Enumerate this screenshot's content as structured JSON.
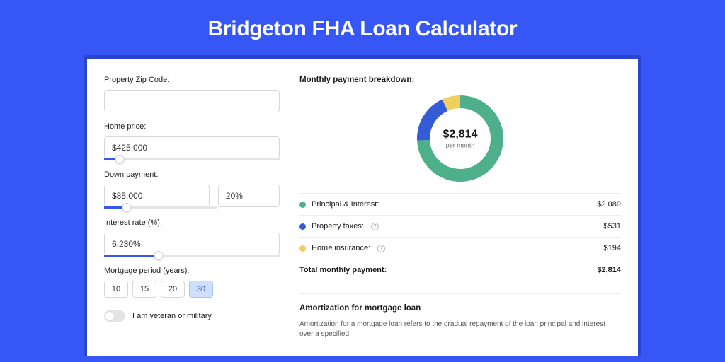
{
  "page": {
    "title": "Bridgeton FHA Loan Calculator",
    "bg_color": "#3656f5",
    "card_frame_color": "#2a44cf",
    "card_bg": "#ffffff"
  },
  "inputs": {
    "zip_label": "Property Zip Code:",
    "zip_value": "",
    "home_price_label": "Home price:",
    "home_price_value": "$425,000",
    "home_price_slider_pct": 9,
    "down_payment_label": "Down payment:",
    "down_payment_amount": "$85,000",
    "down_payment_pct": "20%",
    "down_payment_slider_pct": 20,
    "interest_label": "Interest rate (%):",
    "interest_value": "6.230%",
    "interest_slider_pct": 31,
    "period_label": "Mortgage period (years):",
    "period_options": [
      "10",
      "15",
      "20",
      "30"
    ],
    "period_selected": "30",
    "veteran_label": "I am veteran or military",
    "veteran_on": false
  },
  "breakdown": {
    "title": "Monthly payment breakdown:",
    "donut": {
      "amount": "$2,814",
      "sub": "per month",
      "slices": [
        {
          "label": "Principal & Interest:",
          "color": "#4eb08b",
          "value": "$2,089",
          "pct": 74.2
        },
        {
          "label": "Property taxes:",
          "color": "#335cd6",
          "value": "$531",
          "pct": 18.9,
          "info": true
        },
        {
          "label": "Home insurance:",
          "color": "#f0cf5c",
          "value": "$194",
          "pct": 6.9,
          "info": true
        }
      ],
      "thickness": 18,
      "radius": 52
    },
    "total_label": "Total monthly payment:",
    "total_value": "$2,814"
  },
  "amortization": {
    "title": "Amortization for mortgage loan",
    "text": "Amortization for a mortgage loan refers to the gradual repayment of the loan principal and interest over a specified"
  }
}
